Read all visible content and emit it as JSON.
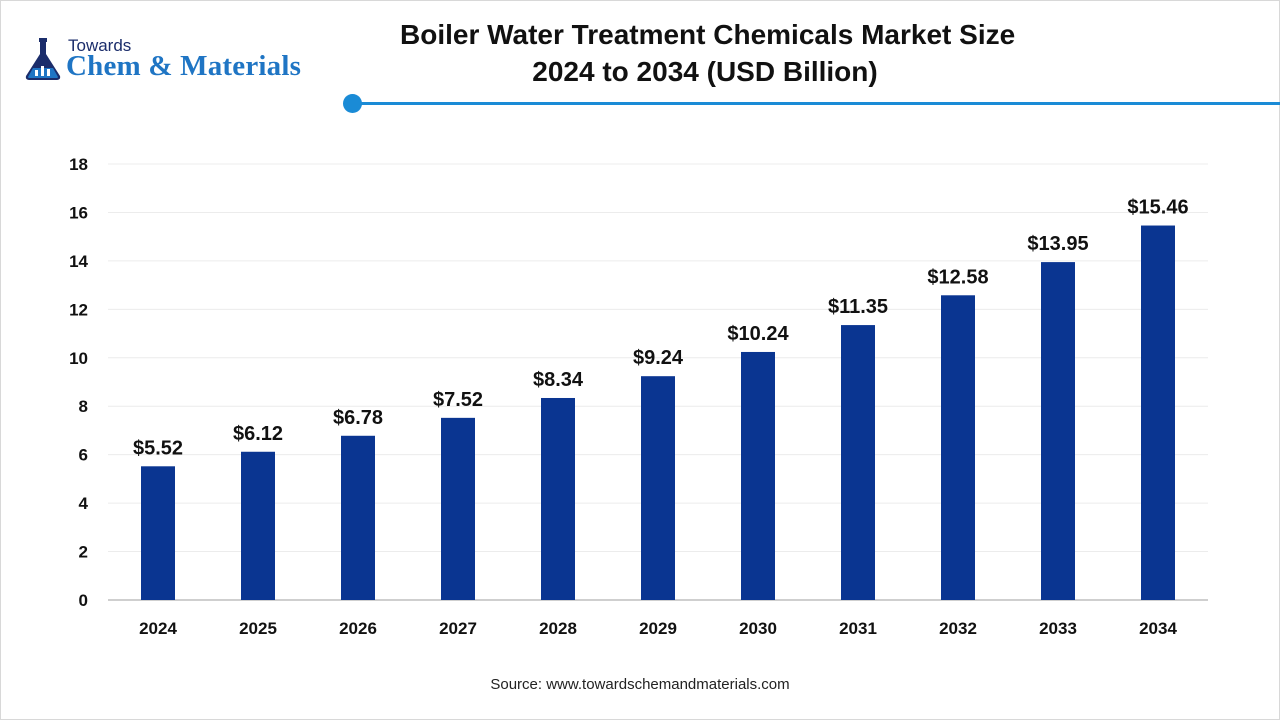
{
  "brand": {
    "top_text": "Towards",
    "main_text": "Chem & Materials",
    "accent_color": "#1a8bd6",
    "brand_color": "#1f75c4",
    "dark_color": "#1b2d6b"
  },
  "header": {
    "title_line1": "Boiler Water Treatment Chemicals Market Size",
    "title_line2": "2024 to 2034 (USD Billion)"
  },
  "chart_data": {
    "type": "bar",
    "title": "Boiler Water Treatment Chemicals Market Size 2024 to 2034 (USD Billion)",
    "xlabel": "",
    "ylabel": "",
    "categories": [
      "2024",
      "2025",
      "2026",
      "2027",
      "2028",
      "2029",
      "2030",
      "2031",
      "2032",
      "2033",
      "2034"
    ],
    "values": [
      5.52,
      6.12,
      6.78,
      7.52,
      8.34,
      9.24,
      10.24,
      11.35,
      12.58,
      13.95,
      15.46
    ],
    "value_labels": [
      "$5.52",
      "$6.12",
      "$6.78",
      "$7.52",
      "$8.34",
      "$9.24",
      "$10.24",
      "$11.35",
      "$12.58",
      "$13.95",
      "$15.46"
    ],
    "ylim": [
      0,
      18
    ],
    "yticks": [
      "0",
      "2",
      "4",
      "6",
      "8",
      "10",
      "12",
      "14",
      "16",
      "18"
    ],
    "grid": true,
    "bar_color": "#0a3591"
  },
  "footer": {
    "source": "Source: www.towardschemandmaterials.com"
  }
}
